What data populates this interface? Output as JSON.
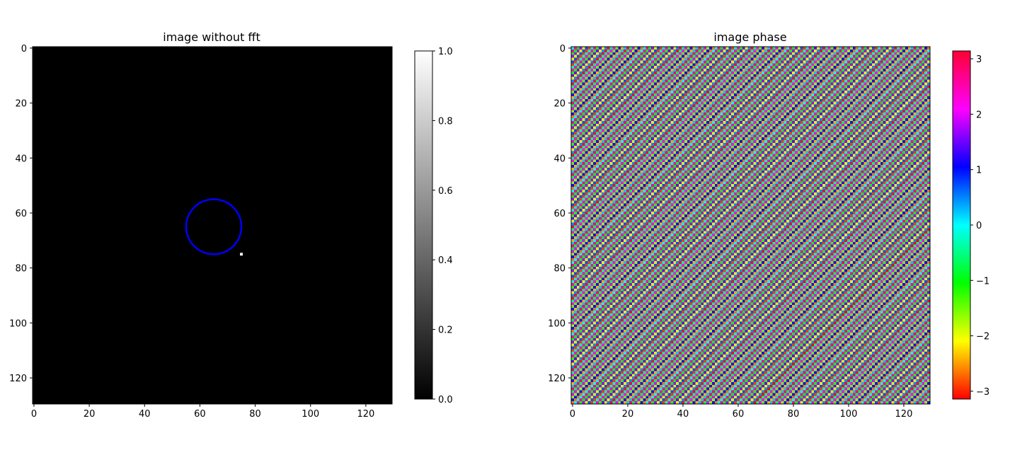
{
  "chart_data": [
    {
      "type": "heatmap",
      "title": "image without fft",
      "xlim": [
        -0.5,
        129.5
      ],
      "ylim": [
        129.5,
        -0.5
      ],
      "xticks": [
        0,
        20,
        40,
        60,
        80,
        100,
        120
      ],
      "yticks": [
        0,
        20,
        40,
        60,
        80,
        100,
        120
      ],
      "xtick_labels": [
        "0",
        "20",
        "40",
        "60",
        "80",
        "100",
        "120"
      ],
      "ytick_labels": [
        "0",
        "20",
        "40",
        "60",
        "80",
        "100",
        "120"
      ],
      "colormap": "gray",
      "background_value": 0,
      "bright_pixels": [
        {
          "x": 75,
          "y": 75,
          "value": 1
        }
      ],
      "annotations": [
        {
          "shape": "circle",
          "center_x": 65,
          "center_y": 65,
          "radius": 10,
          "color": "#0000ff"
        }
      ],
      "colorbar": {
        "range": [
          0.0,
          1.0
        ],
        "ticks": [
          0.0,
          0.2,
          0.4,
          0.6,
          0.8,
          1.0
        ],
        "tick_labels": [
          "0.0",
          "0.2",
          "0.4",
          "0.6",
          "0.8",
          "1.0"
        ]
      }
    },
    {
      "type": "heatmap",
      "title": "image phase",
      "xlim": [
        -0.5,
        129.5
      ],
      "ylim": [
        129.5,
        -0.5
      ],
      "xticks": [
        0,
        20,
        40,
        60,
        80,
        100,
        120
      ],
      "yticks": [
        0,
        20,
        40,
        60,
        80,
        100,
        120
      ],
      "xtick_labels": [
        "0",
        "20",
        "40",
        "60",
        "80",
        "100",
        "120"
      ],
      "ytick_labels": [
        "0",
        "20",
        "40",
        "60",
        "80",
        "100",
        "120"
      ],
      "colormap": "hsv",
      "phase_pattern": {
        "description": "linear phase ramp, wrapped to [-pi, pi]",
        "kx": 75,
        "ky": 75,
        "size": 130
      },
      "colorbar": {
        "range": [
          -3.14159,
          3.14159
        ],
        "ticks": [
          -3,
          -2,
          -1,
          0,
          1,
          2,
          3
        ],
        "tick_labels": [
          "−3",
          "−2",
          "−1",
          "0",
          "1",
          "2",
          "3"
        ]
      }
    }
  ]
}
